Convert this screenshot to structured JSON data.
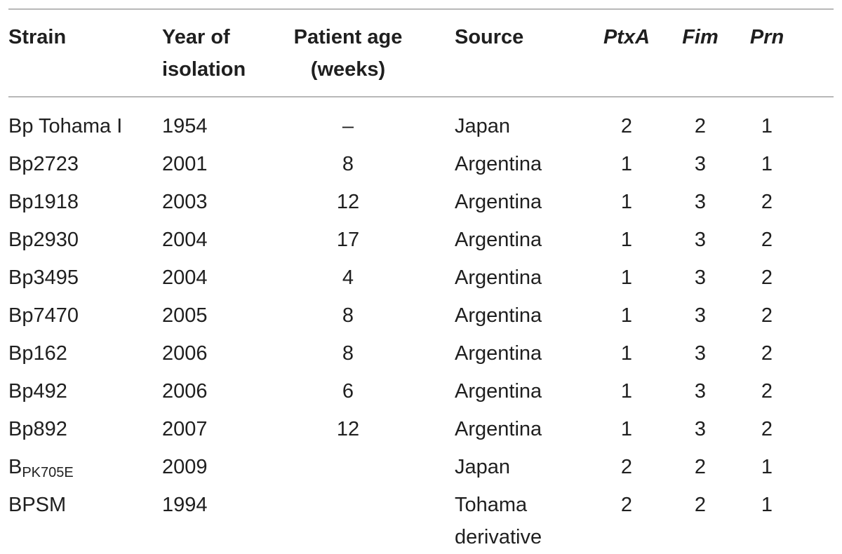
{
  "headers": {
    "strain": "Strain",
    "year_line1": "Year of",
    "year_line2": "isolation",
    "age_line1": "Patient age",
    "age_line2": "(weeks)",
    "source": "Source",
    "ptxa": "PtxA",
    "fim": "Fim",
    "prn": "Prn"
  },
  "rows": [
    {
      "strain": "Bp Tohama I",
      "strain_sub": "",
      "year": "1954",
      "age": "–",
      "source": "Japan",
      "source2": "",
      "ptxa": "2",
      "fim": "2",
      "prn": "1"
    },
    {
      "strain": "Bp2723",
      "strain_sub": "",
      "year": "2001",
      "age": "8",
      "source": "Argentina",
      "source2": "",
      "ptxa": "1",
      "fim": "3",
      "prn": "1"
    },
    {
      "strain": "Bp1918",
      "strain_sub": "",
      "year": "2003",
      "age": "12",
      "source": "Argentina",
      "source2": "",
      "ptxa": "1",
      "fim": "3",
      "prn": "2"
    },
    {
      "strain": "Bp2930",
      "strain_sub": "",
      "year": "2004",
      "age": "17",
      "source": "Argentina",
      "source2": "",
      "ptxa": "1",
      "fim": "3",
      "prn": "2"
    },
    {
      "strain": "Bp3495",
      "strain_sub": "",
      "year": "2004",
      "age": "4",
      "source": "Argentina",
      "source2": "",
      "ptxa": "1",
      "fim": "3",
      "prn": "2"
    },
    {
      "strain": "Bp7470",
      "strain_sub": "",
      "year": "2005",
      "age": "8",
      "source": "Argentina",
      "source2": "",
      "ptxa": "1",
      "fim": "3",
      "prn": "2"
    },
    {
      "strain": "Bp162",
      "strain_sub": "",
      "year": "2006",
      "age": "8",
      "source": "Argentina",
      "source2": "",
      "ptxa": "1",
      "fim": "3",
      "prn": "2"
    },
    {
      "strain": "Bp492",
      "strain_sub": "",
      "year": "2006",
      "age": "6",
      "source": "Argentina",
      "source2": "",
      "ptxa": "1",
      "fim": "3",
      "prn": "2"
    },
    {
      "strain": "Bp892",
      "strain_sub": "",
      "year": "2007",
      "age": "12",
      "source": "Argentina",
      "source2": "",
      "ptxa": "1",
      "fim": "3",
      "prn": "2"
    },
    {
      "strain": "B",
      "strain_sub": "PK705E",
      "year": "2009",
      "age": "",
      "source": "Japan",
      "source2": "",
      "ptxa": "2",
      "fim": "2",
      "prn": "1"
    },
    {
      "strain": "BPSM",
      "strain_sub": "",
      "year": "1994",
      "age": "",
      "source": "Tohama",
      "source2": "derivative",
      "ptxa": "2",
      "fim": "2",
      "prn": "1"
    }
  ]
}
